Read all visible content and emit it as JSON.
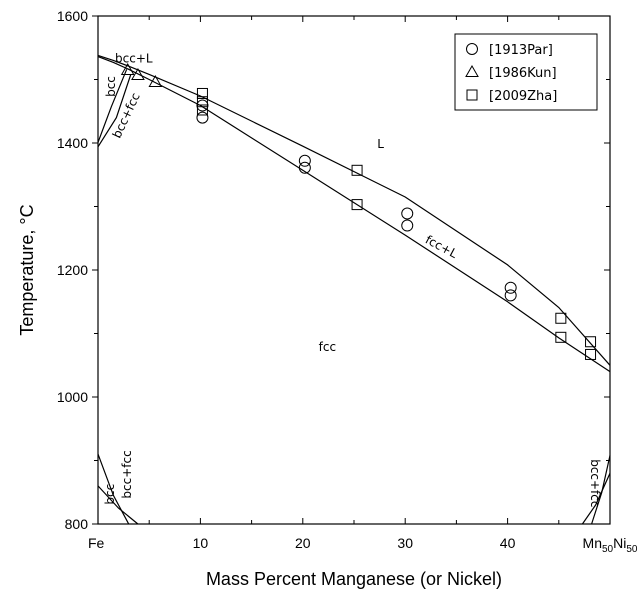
{
  "chart_data": {
    "type": "scatter",
    "xlabel": "Mass Percent Manganese (or Nickel)",
    "ylabel": "Temperature, °C",
    "xlim": [
      0,
      50
    ],
    "ylim": [
      800,
      1600
    ],
    "x_ticks": [
      {
        "value": 0,
        "label": "Fe"
      },
      {
        "value": 10,
        "label": "10"
      },
      {
        "value": 20,
        "label": "20"
      },
      {
        "value": 30,
        "label": "30"
      },
      {
        "value": 40,
        "label": "40"
      },
      {
        "value": 50,
        "label": "Mn",
        "sub1": "50",
        "mid": "Ni",
        "sub2": "50"
      }
    ],
    "y_ticks": [
      {
        "value": 800,
        "label": "800"
      },
      {
        "value": 1000,
        "label": "1000"
      },
      {
        "value": 1200,
        "label": "1200"
      },
      {
        "value": 1400,
        "label": "1400"
      },
      {
        "value": 1600,
        "label": "1600"
      }
    ],
    "legend_position": "top-right",
    "series": [
      {
        "name": "[1913Par]",
        "marker": "circle",
        "x": [
          10.2,
          10.2,
          20.2,
          20.2,
          30.2,
          30.2,
          40.3,
          40.3
        ],
        "y": [
          1459,
          1440,
          1372,
          1361,
          1289,
          1270,
          1172,
          1160
        ]
      },
      {
        "name": "[1986Kun]",
        "marker": "triangle",
        "x": [
          2.9,
          3.9,
          5.6
        ],
        "y": [
          1515,
          1507,
          1496
        ]
      },
      {
        "name": "[2009Zha]",
        "marker": "square",
        "x": [
          10.2,
          10.2,
          10.2,
          25.3,
          25.3,
          45.2,
          45.2,
          48.1,
          48.1
        ],
        "y": [
          1478,
          1465,
          1452,
          1357,
          1303,
          1124,
          1094,
          1087,
          1067
        ]
      }
    ],
    "phase_boundaries": [
      {
        "x": [
          0,
          1.5,
          3,
          5,
          10,
          20,
          30,
          40,
          45,
          50
        ],
        "y": [
          1538,
          1530,
          1521,
          1508,
          1474,
          1395,
          1315,
          1208,
          1141,
          1050
        ]
      },
      {
        "x": [
          0,
          1.5,
          3,
          5,
          10,
          20,
          30,
          40,
          45,
          50
        ],
        "y": [
          1536,
          1527,
          1516,
          1500,
          1459,
          1357,
          1255,
          1150,
          1093,
          1040
        ]
      },
      {
        "x": [
          0,
          1.3,
          2.8
        ],
        "y": [
          1401,
          1457,
          1516
        ]
      },
      {
        "x": [
          0,
          1.8,
          3.2
        ],
        "y": [
          1394,
          1440,
          1508
        ]
      },
      {
        "x": [
          0,
          1.5,
          3.0
        ],
        "y": [
          910,
          845,
          800
        ]
      },
      {
        "x": [
          0,
          2.0,
          3.9
        ],
        "y": [
          860,
          825,
          800
        ]
      },
      {
        "x": [
          50,
          49.2,
          48.2
        ],
        "y": [
          908,
          850,
          800
        ]
      },
      {
        "x": [
          50,
          48.6,
          47.3
        ],
        "y": [
          880,
          830,
          800
        ]
      }
    ],
    "region_labels": [
      {
        "text": "L",
        "x": 27.6,
        "y": 1398,
        "rotate": 0
      },
      {
        "text": "fcc",
        "x": 22.4,
        "y": 1078,
        "rotate": 0
      },
      {
        "text": "fcc+L",
        "x": 33.5,
        "y": 1236,
        "rotate": 28
      },
      {
        "text": "bcc+L",
        "x": 3.5,
        "y": 1532,
        "rotate": 0
      },
      {
        "text": "bcc",
        "x": 1.3,
        "y": 1489,
        "rotate": -90
      },
      {
        "text": "bcc+fcc",
        "x": 2.8,
        "y": 1443,
        "rotate": -65
      },
      {
        "text": "bcc",
        "x": 1.2,
        "y": 847,
        "rotate": -90
      },
      {
        "text": "bcc+fcc",
        "x": 2.9,
        "y": 878,
        "rotate": -90
      },
      {
        "text": "bcc+fcc",
        "x": 48.5,
        "y": 864,
        "rotate": 90
      }
    ]
  }
}
